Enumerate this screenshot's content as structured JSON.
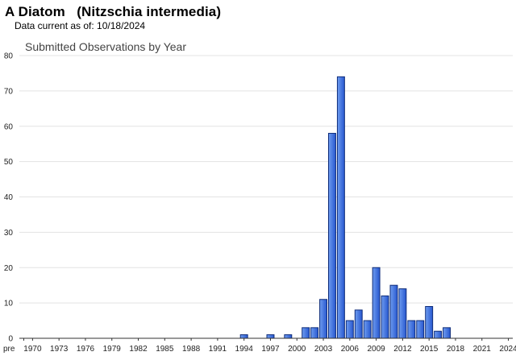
{
  "header": {
    "title": "A Diatom   (Nitzschia intermedia)",
    "currency": "Data current as of: 10/18/2024"
  },
  "colors": {
    "bar_fill_light": "#6f9df0",
    "bar_fill_dark": "#2757cf",
    "bar_stroke": "#0e2c7a"
  },
  "chart_data": {
    "type": "bar",
    "title": "Submitted Observations by Year",
    "xlabel": "",
    "ylabel": "",
    "ylim": [
      0,
      80
    ],
    "yticks": [
      0,
      10,
      20,
      30,
      40,
      50,
      60,
      70,
      80
    ],
    "grid": true,
    "legend": "none",
    "categories": [
      "pre",
      "1970",
      "1971",
      "1972",
      "1973",
      "1974",
      "1975",
      "1976",
      "1977",
      "1978",
      "1979",
      "1980",
      "1981",
      "1982",
      "1983",
      "1984",
      "1985",
      "1986",
      "1987",
      "1988",
      "1989",
      "1990",
      "1991",
      "1992",
      "1993",
      "1994",
      "1995",
      "1996",
      "1997",
      "1998",
      "1999",
      "2000",
      "2001",
      "2002",
      "2003",
      "2004",
      "2005",
      "2006",
      "2007",
      "2008",
      "2009",
      "2010",
      "2011",
      "2012",
      "2013",
      "2014",
      "2015",
      "2016",
      "2017",
      "2018",
      "2019",
      "2020",
      "2021",
      "2022",
      "2023",
      "2024"
    ],
    "tick_labels": [
      "pre",
      "1970",
      "1973",
      "1976",
      "1979",
      "1982",
      "1985",
      "1988",
      "1991",
      "1994",
      "1997",
      "2000",
      "2003",
      "2006",
      "2009",
      "2012",
      "2015",
      "2018",
      "2021",
      "2024"
    ],
    "values": [
      0,
      0,
      0,
      0,
      0,
      0,
      0,
      0,
      0,
      0,
      0,
      0,
      0,
      0,
      0,
      0,
      0,
      0,
      0,
      0,
      0,
      0,
      0,
      0,
      0,
      1,
      0,
      0,
      1,
      0,
      1,
      0,
      3,
      3,
      11,
      58,
      74,
      5,
      8,
      5,
      20,
      12,
      15,
      14,
      5,
      5,
      9,
      2,
      3,
      0,
      0,
      0,
      0,
      0,
      0,
      0
    ]
  }
}
